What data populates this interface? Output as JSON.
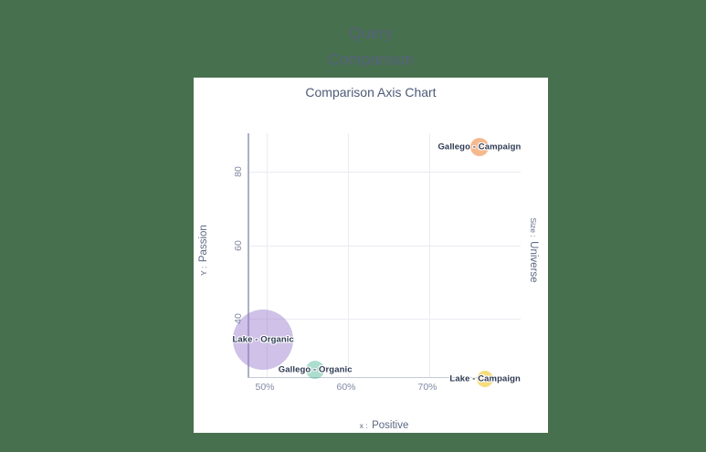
{
  "header": {
    "title": "Query Comparison"
  },
  "colors": {
    "background": "#47704e",
    "panel": "#ffffff",
    "header_text": "#56617c",
    "chart_title_text": "#4d5b77",
    "axis_title_text": "#5c6983",
    "tick_text": "#8089a3",
    "grid_line": "#ebecf2",
    "y_axis_line": "#a9b1c5",
    "x_axis_line": "#c3c9d8",
    "point_label_text": "#2e3a52"
  },
  "chart_data": {
    "type": "scatter",
    "title": "Comparison Axis Chart",
    "grid": true,
    "legend": false,
    "x_axis": {
      "prefix": "x :",
      "label": "Positive",
      "ticks": [
        "50%",
        "60%",
        "70%"
      ],
      "tick_values": [
        50,
        60,
        70
      ],
      "range_pct": [
        47.9,
        81.5
      ]
    },
    "y_axis": {
      "prefix": "Y :",
      "label": "Passion",
      "ticks": [
        "40",
        "60",
        "80"
      ],
      "tick_values": [
        40,
        60,
        80
      ],
      "range": [
        23.9,
        90.5
      ]
    },
    "size_axis": {
      "prefix": "Size :",
      "label": "Universe"
    },
    "points": [
      {
        "label": "Gallego - Campaign",
        "x_pct": 76.4,
        "y": 86.7,
        "radius_px": 10,
        "color": "rgba(238,128,50,0.55)"
      },
      {
        "label": "Lake - Organic",
        "x_pct": 49.8,
        "y": 34.2,
        "radius_px": 33,
        "color": "rgba(148,118,202,0.45)"
      },
      {
        "label": "Gallego - Organic",
        "x_pct": 56.2,
        "y": 26.1,
        "radius_px": 10,
        "color": "rgba(70,180,146,0.45)"
      },
      {
        "label": "Lake - Campaign",
        "x_pct": 77.1,
        "y": 23.6,
        "radius_px": 9,
        "color": "rgba(240,198,40,0.6)"
      }
    ]
  }
}
